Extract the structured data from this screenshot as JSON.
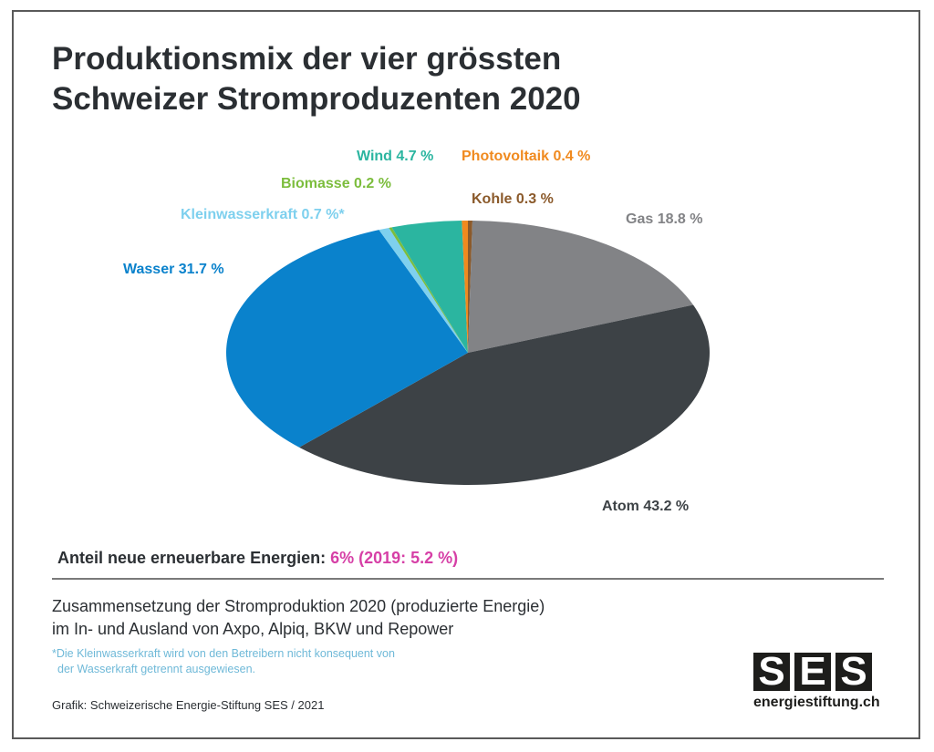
{
  "title_line1": "Produktionsmix der vier grössten",
  "title_line2": "Schweizer Stromproduzenten 2020",
  "colors": {
    "Atom": "#3d4246",
    "Wasser": "#0a82cc",
    "Kleinwasserkraft": "#7ed0ee",
    "Biomasse": "#7cbd3d",
    "Wind": "#2bb5a0",
    "Photovoltaik": "#f08a1f",
    "Kohle": "#8b5a2b",
    "Gas": "#828386"
  },
  "chart_data": {
    "type": "pie",
    "title": "Produktionsmix der vier grössten Schweizer Stromproduzenten 2020",
    "slices": [
      {
        "name": "Kohle",
        "value": 0.3,
        "label": "Kohle 0.3 %"
      },
      {
        "name": "Gas",
        "value": 18.8,
        "label": "Gas 18.8 %"
      },
      {
        "name": "Atom",
        "value": 43.2,
        "label": "Atom 43.2 %"
      },
      {
        "name": "Wasser",
        "value": 31.7,
        "label": "Wasser 31.7 %"
      },
      {
        "name": "Kleinwasserkraft",
        "value": 0.7,
        "label": "Kleinwasserkraft 0.7 %*"
      },
      {
        "name": "Biomasse",
        "value": 0.2,
        "label": "Biomasse 0.2 %"
      },
      {
        "name": "Wind",
        "value": 4.7,
        "label": "Wind 4.7 %"
      },
      {
        "name": "Photovoltaik",
        "value": 0.4,
        "label": "Photovoltaik 0.4 %"
      }
    ]
  },
  "renewables": {
    "label": "Anteil neue erneuerbare Energien:",
    "value": "6% (2019: 5.2 %)"
  },
  "description_line1": "Zusammensetzung der Stromproduktion 2020 (produzierte Energie)",
  "description_line2": "im In- und Ausland von Axpo, Alpiq, BKW und Repower",
  "footnote_line1": "*Die Kleinwasserkraft wird von den Betreibern nicht konsequent von",
  "footnote_line2": "der Wasserkraft getrennt ausgewiesen.",
  "credit": "Grafik: Schweizerische Energie-Stiftung SES / 2021",
  "logo": {
    "letters": [
      "S",
      "E",
      "S"
    ],
    "url": "energiestiftung.ch"
  }
}
